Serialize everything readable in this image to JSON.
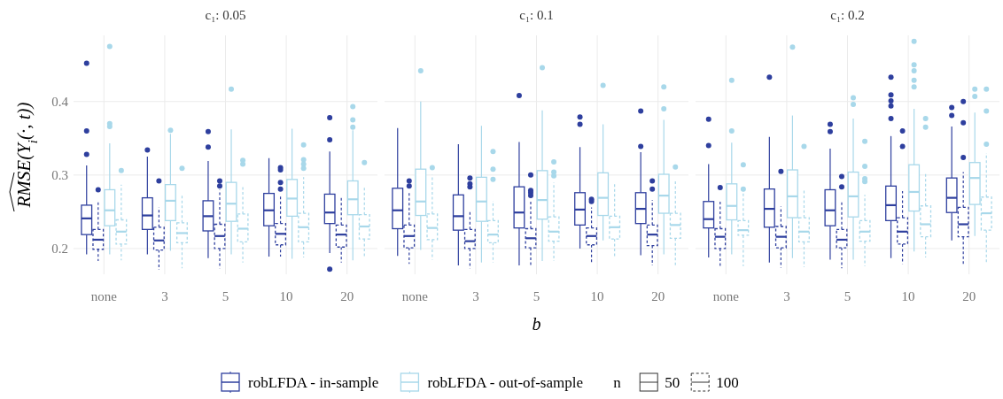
{
  "chart_data": [
    {
      "type": "box",
      "title": "c₁: 0.05",
      "ylabel": "RMSE(Y$_{i}$(·, t))",
      "categories": [
        "none",
        "3",
        "5",
        "10",
        "20"
      ],
      "ylim": [
        0.165,
        0.49
      ],
      "yticks": [
        0.2,
        0.3,
        0.4
      ],
      "grid": true,
      "legend": "bottom",
      "annotations": [
        "n",
        "50",
        "100"
      ],
      "series": [
        {
          "name": "robLFDA - in-sample",
          "color": "#2e3f9e",
          "line_style": "solid",
          "boxes": [
            {
              "low": 0.192,
              "q1": 0.219,
              "median": 0.241,
              "q3": 0.259,
              "high": 0.313,
              "outliers": [
                0.452,
                0.36,
                0.328
              ]
            },
            {
              "low": 0.192,
              "q1": 0.226,
              "median": 0.245,
              "q3": 0.269,
              "high": 0.325,
              "outliers": [
                0.334
              ]
            },
            {
              "low": 0.187,
              "q1": 0.224,
              "median": 0.244,
              "q3": 0.265,
              "high": 0.319,
              "outliers": [
                0.359,
                0.338
              ]
            },
            {
              "low": 0.189,
              "q1": 0.231,
              "median": 0.252,
              "q3": 0.275,
              "high": 0.323
            },
            {
              "low": 0.194,
              "q1": 0.234,
              "median": 0.249,
              "q3": 0.274,
              "high": 0.332,
              "outliers": [
                0.378,
                0.348,
                0.172
              ]
            }
          ]
        },
        {
          "color": "#2e3f9e",
          "line_style": "dashed",
          "boxes": [
            {
              "low": 0.183,
              "q1": 0.199,
              "median": 0.212,
              "q3": 0.226,
              "high": 0.263,
              "outliers": [
                0.28
              ]
            },
            {
              "low": 0.171,
              "q1": 0.198,
              "median": 0.211,
              "q3": 0.229,
              "high": 0.256,
              "outliers": [
                0.292
              ]
            },
            {
              "low": 0.173,
              "q1": 0.2,
              "median": 0.217,
              "q3": 0.233,
              "high": 0.28,
              "outliers": [
                0.292,
                0.285
              ]
            },
            {
              "low": 0.189,
              "q1": 0.205,
              "median": 0.22,
              "q3": 0.234,
              "high": 0.272,
              "outliers": [
                0.31,
                0.307,
                0.29,
                0.281
              ]
            },
            {
              "low": 0.181,
              "q1": 0.202,
              "median": 0.219,
              "q3": 0.232,
              "high": 0.27
            }
          ]
        },
        {
          "name": "robLFDA - out-of-sample",
          "color": "#a8d8ea",
          "line_style": "solid",
          "boxes": [
            {
              "low": 0.192,
              "q1": 0.231,
              "median": 0.252,
              "q3": 0.28,
              "high": 0.343,
              "outliers": [
                0.475,
                0.37,
                0.366
              ]
            },
            {
              "low": 0.197,
              "q1": 0.238,
              "median": 0.265,
              "q3": 0.287,
              "high": 0.356,
              "outliers": [
                0.361
              ]
            },
            {
              "low": 0.192,
              "q1": 0.237,
              "median": 0.261,
              "q3": 0.29,
              "high": 0.362,
              "outliers": [
                0.417
              ]
            },
            {
              "low": 0.186,
              "q1": 0.244,
              "median": 0.268,
              "q3": 0.294,
              "high": 0.363
            },
            {
              "low": 0.184,
              "q1": 0.246,
              "median": 0.267,
              "q3": 0.292,
              "high": 0.361,
              "outliers": [
                0.393,
                0.375,
                0.365
              ]
            }
          ]
        },
        {
          "color": "#a8d8ea",
          "line_style": "dashed",
          "boxes": [
            {
              "low": 0.184,
              "q1": 0.206,
              "median": 0.223,
              "q3": 0.239,
              "high": 0.287,
              "outliers": [
                0.306
              ]
            },
            {
              "low": 0.173,
              "q1": 0.208,
              "median": 0.221,
              "q3": 0.235,
              "high": 0.274,
              "outliers": [
                0.309
              ]
            },
            {
              "low": 0.181,
              "q1": 0.209,
              "median": 0.227,
              "q3": 0.247,
              "high": 0.285,
              "outliers": [
                0.32,
                0.315
              ]
            },
            {
              "low": 0.188,
              "q1": 0.209,
              "median": 0.229,
              "q3": 0.248,
              "high": 0.297,
              "outliers": [
                0.341,
                0.321,
                0.315,
                0.309
              ]
            },
            {
              "low": 0.187,
              "q1": 0.213,
              "median": 0.23,
              "q3": 0.246,
              "high": 0.284,
              "outliers": [
                0.317
              ]
            }
          ]
        }
      ]
    },
    {
      "type": "box",
      "title": "c₁: 0.1",
      "xlabel": "b",
      "categories": [
        "none",
        "3",
        "5",
        "10",
        "20"
      ],
      "ylim": [
        0.165,
        0.49
      ],
      "yticks": [
        0.2,
        0.3,
        0.4
      ],
      "grid": true,
      "tick_labels": "x",
      "series": [
        {
          "color": "#2e3f9e",
          "line_style": "solid",
          "boxes": [
            {
              "low": 0.19,
              "q1": 0.227,
              "median": 0.252,
              "q3": 0.282,
              "high": 0.364
            },
            {
              "low": 0.177,
              "q1": 0.225,
              "median": 0.244,
              "q3": 0.273,
              "high": 0.342
            },
            {
              "low": 0.177,
              "q1": 0.228,
              "median": 0.249,
              "q3": 0.284,
              "high": 0.345,
              "outliers": [
                0.408
              ]
            },
            {
              "low": 0.2,
              "q1": 0.232,
              "median": 0.253,
              "q3": 0.276,
              "high": 0.338,
              "outliers": [
                0.379,
                0.369
              ]
            },
            {
              "low": 0.191,
              "q1": 0.234,
              "median": 0.254,
              "q3": 0.276,
              "high": 0.331,
              "outliers": [
                0.387,
                0.339
              ]
            }
          ]
        },
        {
          "color": "#2e3f9e",
          "line_style": "dashed",
          "boxes": [
            {
              "low": 0.179,
              "q1": 0.201,
              "median": 0.217,
              "q3": 0.232,
              "high": 0.278,
              "outliers": [
                0.292,
                0.285
              ]
            },
            {
              "low": 0.173,
              "q1": 0.2,
              "median": 0.21,
              "q3": 0.226,
              "high": 0.252,
              "outliers": [
                0.296,
                0.288,
                0.284
              ]
            },
            {
              "low": 0.177,
              "q1": 0.201,
              "median": 0.214,
              "q3": 0.227,
              "high": 0.264,
              "outliers": [
                0.3,
                0.279,
                0.276,
                0.272
              ]
            },
            {
              "low": 0.179,
              "q1": 0.205,
              "median": 0.217,
              "q3": 0.228,
              "high": 0.256,
              "outliers": [
                0.267,
                0.264
              ]
            },
            {
              "low": 0.177,
              "q1": 0.204,
              "median": 0.219,
              "q3": 0.232,
              "high": 0.266,
              "outliers": [
                0.292,
                0.281
              ]
            }
          ]
        },
        {
          "color": "#a8d8ea",
          "line_style": "solid",
          "boxes": [
            {
              "low": 0.198,
              "q1": 0.245,
              "median": 0.264,
              "q3": 0.308,
              "high": 0.4,
              "outliers": [
                0.442
              ]
            },
            {
              "low": 0.181,
              "q1": 0.237,
              "median": 0.264,
              "q3": 0.297,
              "high": 0.367
            },
            {
              "low": 0.183,
              "q1": 0.24,
              "median": 0.266,
              "q3": 0.306,
              "high": 0.388,
              "outliers": [
                0.446
              ]
            },
            {
              "low": 0.211,
              "q1": 0.245,
              "median": 0.269,
              "q3": 0.303,
              "high": 0.369,
              "outliers": [
                0.422
              ]
            },
            {
              "low": 0.192,
              "q1": 0.248,
              "median": 0.272,
              "q3": 0.301,
              "high": 0.375,
              "outliers": [
                0.42,
                0.39
              ]
            }
          ]
        },
        {
          "color": "#a8d8ea",
          "line_style": "dashed",
          "boxes": [
            {
              "low": 0.185,
              "q1": 0.212,
              "median": 0.228,
              "q3": 0.247,
              "high": 0.3,
              "outliers": [
                0.31
              ]
            },
            {
              "low": 0.181,
              "q1": 0.208,
              "median": 0.219,
              "q3": 0.238,
              "high": 0.265,
              "outliers": [
                0.332,
                0.308,
                0.294
              ]
            },
            {
              "low": 0.183,
              "q1": 0.21,
              "median": 0.223,
              "q3": 0.243,
              "high": 0.29,
              "outliers": [
                0.318,
                0.304,
                0.299
              ]
            },
            {
              "low": 0.188,
              "q1": 0.213,
              "median": 0.229,
              "q3": 0.244,
              "high": 0.288
            },
            {
              "low": 0.177,
              "q1": 0.214,
              "median": 0.232,
              "q3": 0.248,
              "high": 0.292,
              "outliers": [
                0.311
              ]
            }
          ]
        }
      ]
    },
    {
      "type": "box",
      "title": "c₁: 0.2",
      "categories": [
        "none",
        "3",
        "5",
        "10",
        "20"
      ],
      "ylim": [
        0.165,
        0.49
      ],
      "yticks": [
        0.2,
        0.3,
        0.4
      ],
      "grid": true,
      "tick_labels": "x",
      "series": [
        {
          "color": "#2e3f9e",
          "line_style": "solid",
          "boxes": [
            {
              "low": 0.188,
              "q1": 0.228,
              "median": 0.24,
              "q3": 0.264,
              "high": 0.315,
              "outliers": [
                0.376,
                0.34
              ]
            },
            {
              "low": 0.181,
              "q1": 0.229,
              "median": 0.254,
              "q3": 0.281,
              "high": 0.352,
              "outliers": [
                0.433
              ]
            },
            {
              "low": 0.185,
              "q1": 0.231,
              "median": 0.252,
              "q3": 0.28,
              "high": 0.336,
              "outliers": [
                0.369,
                0.359
              ]
            },
            {
              "low": 0.187,
              "q1": 0.238,
              "median": 0.259,
              "q3": 0.285,
              "high": 0.353,
              "outliers": [
                0.433,
                0.409,
                0.401,
                0.394,
                0.377
              ]
            },
            {
              "low": 0.211,
              "q1": 0.249,
              "median": 0.269,
              "q3": 0.296,
              "high": 0.366,
              "outliers": [
                0.392,
                0.381
              ]
            }
          ]
        },
        {
          "color": "#2e3f9e",
          "line_style": "dashed",
          "boxes": [
            {
              "low": 0.175,
              "q1": 0.2,
              "median": 0.216,
              "q3": 0.227,
              "high": 0.265,
              "outliers": [
                0.283
              ]
            },
            {
              "low": 0.174,
              "q1": 0.201,
              "median": 0.216,
              "q3": 0.23,
              "high": 0.257,
              "outliers": [
                0.305
              ]
            },
            {
              "low": 0.173,
              "q1": 0.201,
              "median": 0.212,
              "q3": 0.226,
              "high": 0.264,
              "outliers": [
                0.298,
                0.284
              ]
            },
            {
              "low": 0.179,
              "q1": 0.206,
              "median": 0.223,
              "q3": 0.242,
              "high": 0.278,
              "outliers": [
                0.36,
                0.339
              ]
            },
            {
              "low": 0.179,
              "q1": 0.216,
              "median": 0.233,
              "q3": 0.256,
              "high": 0.304,
              "outliers": [
                0.4,
                0.371,
                0.324
              ]
            }
          ]
        },
        {
          "color": "#a8d8ea",
          "line_style": "solid",
          "boxes": [
            {
              "low": 0.192,
              "q1": 0.239,
              "median": 0.258,
              "q3": 0.288,
              "high": 0.344,
              "outliers": [
                0.429,
                0.36
              ]
            },
            {
              "low": 0.187,
              "q1": 0.242,
              "median": 0.271,
              "q3": 0.307,
              "high": 0.381,
              "outliers": [
                0.474
              ]
            },
            {
              "low": 0.185,
              "q1": 0.243,
              "median": 0.271,
              "q3": 0.304,
              "high": 0.377,
              "outliers": [
                0.405,
                0.396
              ]
            },
            {
              "low": 0.196,
              "q1": 0.251,
              "median": 0.277,
              "q3": 0.314,
              "high": 0.39,
              "outliers": [
                0.482,
                0.45,
                0.442,
                0.429,
                0.42
              ]
            },
            {
              "low": 0.217,
              "q1": 0.26,
              "median": 0.296,
              "q3": 0.317,
              "high": 0.385,
              "outliers": [
                0.417,
                0.407
              ]
            }
          ]
        },
        {
          "color": "#a8d8ea",
          "line_style": "dashed",
          "boxes": [
            {
              "low": 0.176,
              "q1": 0.218,
              "median": 0.225,
              "q3": 0.238,
              "high": 0.278,
              "outliers": [
                0.314,
                0.281
              ]
            },
            {
              "low": 0.175,
              "q1": 0.209,
              "median": 0.223,
              "q3": 0.242,
              "high": 0.28,
              "outliers": [
                0.339
              ]
            },
            {
              "low": 0.176,
              "q1": 0.21,
              "median": 0.223,
              "q3": 0.238,
              "high": 0.273,
              "outliers": [
                0.346,
                0.312,
                0.295,
                0.291
              ]
            },
            {
              "low": 0.188,
              "q1": 0.216,
              "median": 0.233,
              "q3": 0.258,
              "high": 0.302,
              "outliers": [
                0.377,
                0.365
              ]
            },
            {
              "low": 0.181,
              "q1": 0.225,
              "median": 0.248,
              "q3": 0.27,
              "high": 0.33,
              "outliers": [
                0.417,
                0.387,
                0.342
              ]
            }
          ]
        }
      ]
    }
  ]
}
